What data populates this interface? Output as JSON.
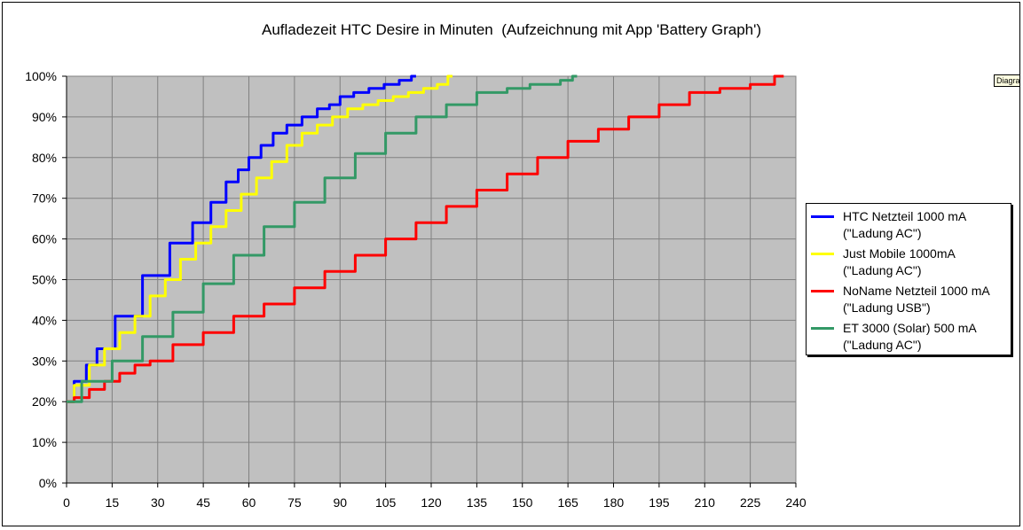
{
  "tooltip": "Diagrammbereich",
  "chart_data": {
    "type": "line",
    "title": "Aufladezeit HTC Desire in Minuten  (Aufzeichnung mit App 'Battery Graph')",
    "xlabel": "",
    "ylabel": "",
    "xlim": [
      0,
      240
    ],
    "ylim": [
      0,
      100
    ],
    "x_ticks": [
      0,
      15,
      30,
      45,
      60,
      75,
      90,
      105,
      120,
      135,
      150,
      165,
      180,
      195,
      210,
      225,
      240
    ],
    "y_ticks": [
      0,
      10,
      20,
      30,
      40,
      50,
      60,
      70,
      80,
      90,
      100
    ],
    "y_tick_labels": [
      "0%",
      "10%",
      "20%",
      "30%",
      "40%",
      "50%",
      "60%",
      "70%",
      "80%",
      "90%",
      "100%"
    ],
    "grid": true,
    "plot_background": "#c0c0c0",
    "legend_position": "right",
    "series": [
      {
        "name": "HTC Netzteil 1000 mA\n(\"Ladung AC\")",
        "color": "#0000ff",
        "x": [
          0,
          5,
          8,
          12,
          20,
          30,
          38,
          45,
          50,
          55,
          58,
          62,
          66,
          70,
          75,
          80,
          85,
          88,
          92,
          97,
          102,
          107,
          112,
          115
        ],
        "y": [
          20,
          25,
          29,
          33,
          41,
          51,
          59,
          64,
          69,
          74,
          77,
          80,
          83,
          86,
          88,
          90,
          92,
          93,
          95,
          96,
          97,
          98,
          99,
          100
        ]
      },
      {
        "name": "Just Mobile 1000mA\n(\"Ladung AC\")",
        "color": "#ffff00",
        "x": [
          0,
          5,
          10,
          15,
          20,
          25,
          30,
          35,
          40,
          45,
          50,
          55,
          60,
          65,
          70,
          75,
          80,
          85,
          90,
          95,
          100,
          105,
          110,
          115,
          120,
          124,
          127
        ],
        "y": [
          20,
          24,
          29,
          33,
          37,
          41,
          46,
          50,
          55,
          59,
          63,
          67,
          71,
          75,
          79,
          83,
          86,
          88,
          90,
          92,
          93,
          94,
          95,
          96,
          97,
          98,
          100
        ]
      },
      {
        "name": "NoName Netzteil 1000 mA\n(\"Ladung USB\")",
        "color": "#ff0000",
        "x": [
          0,
          5,
          10,
          15,
          20,
          25,
          30,
          40,
          50,
          60,
          70,
          80,
          90,
          100,
          110,
          120,
          130,
          140,
          150,
          160,
          170,
          180,
          190,
          200,
          210,
          220,
          230,
          236
        ],
        "y": [
          20,
          21,
          23,
          25,
          27,
          29,
          30,
          34,
          37,
          41,
          44,
          48,
          52,
          56,
          60,
          64,
          68,
          72,
          76,
          80,
          84,
          87,
          90,
          93,
          96,
          97,
          98,
          100
        ]
      },
      {
        "name": "ET 3000 (Solar) 500 mA\n(\"Ladung AC\")",
        "color": "#339966",
        "x": [
          0,
          10,
          20,
          30,
          40,
          50,
          60,
          70,
          80,
          90,
          100,
          110,
          120,
          130,
          140,
          150,
          155,
          160,
          165,
          168
        ],
        "y": [
          20,
          25,
          30,
          36,
          42,
          49,
          56,
          63,
          69,
          75,
          81,
          86,
          90,
          93,
          96,
          97,
          98,
          98,
          99,
          100
        ]
      }
    ]
  }
}
